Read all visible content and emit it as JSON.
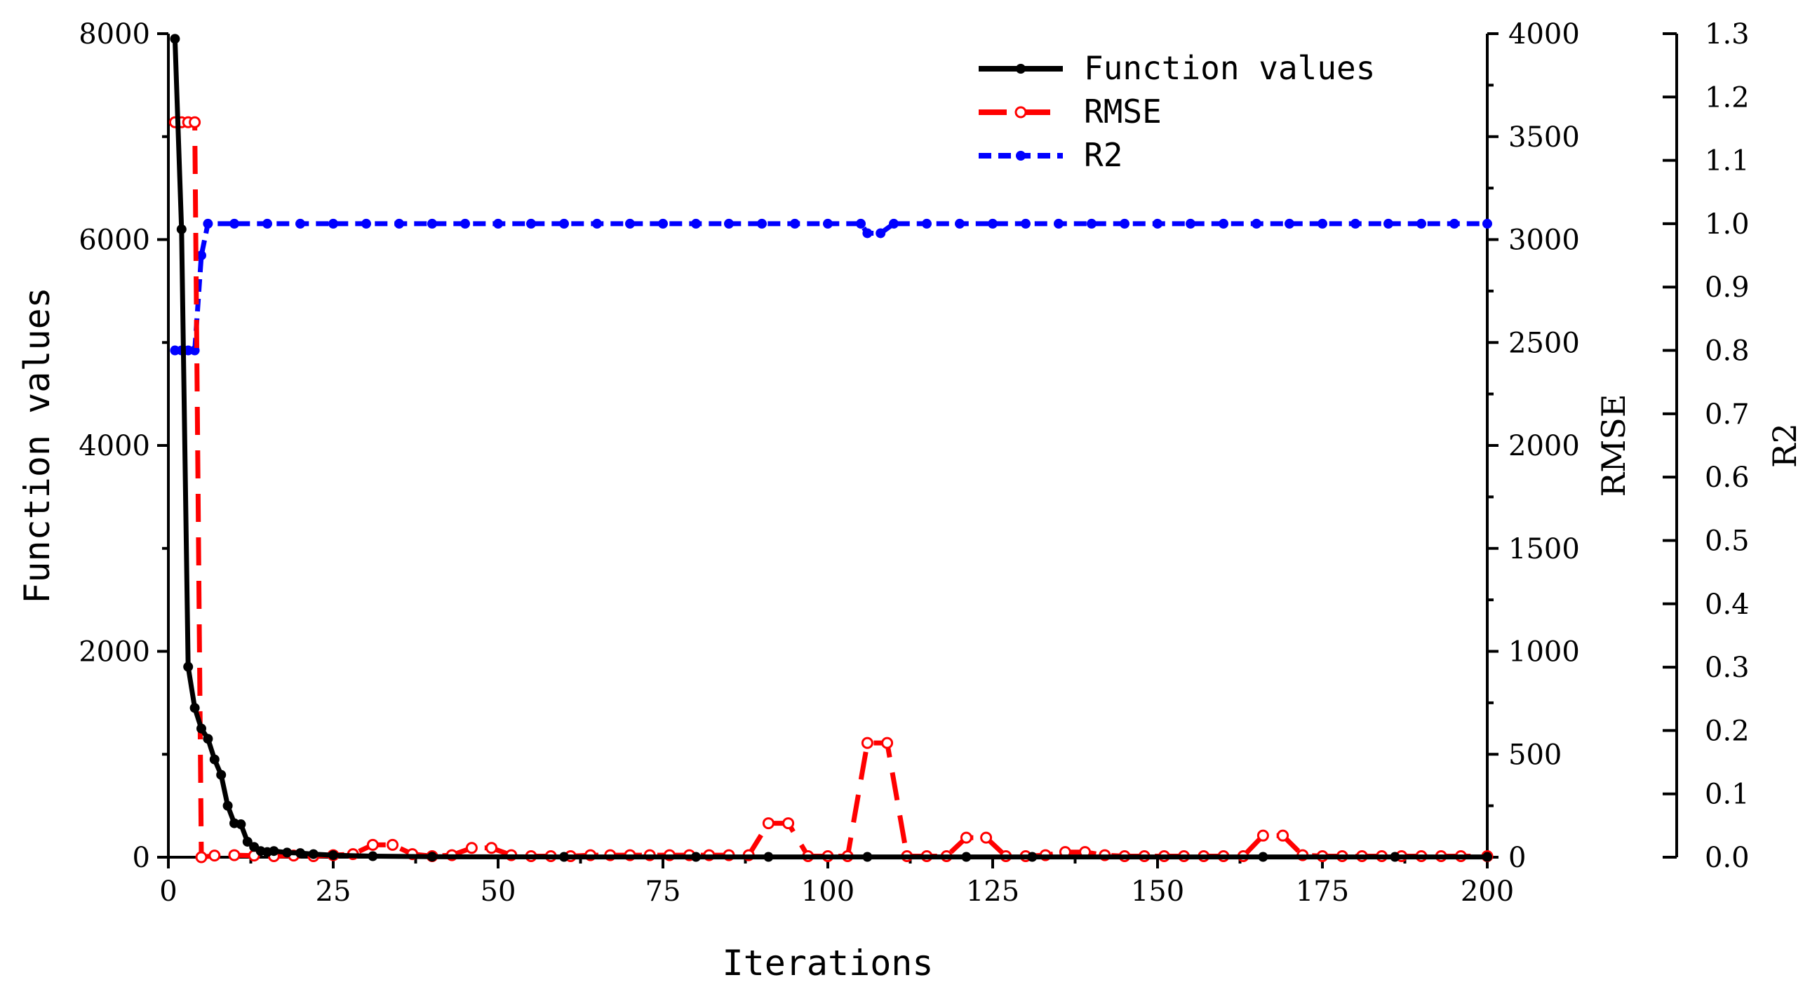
{
  "chart_data": {
    "type": "line",
    "xlabel": "Iterations",
    "x_ticks": [
      "0",
      "25",
      "50",
      "75",
      "100",
      "125",
      "150",
      "175",
      "200"
    ],
    "x_range": [
      0,
      200
    ],
    "axes": [
      {
        "id": "left",
        "label": "Function values",
        "ylim": [
          0,
          8000
        ],
        "ticks": [
          "0",
          "2000",
          "4000",
          "6000",
          "8000"
        ]
      },
      {
        "id": "right1",
        "label": "RMSE",
        "ylim": [
          0,
          4000
        ],
        "ticks": [
          "0",
          "500",
          "1000",
          "1500",
          "2000",
          "2500",
          "3000",
          "3500",
          "4000"
        ]
      },
      {
        "id": "right2",
        "label": "R2",
        "ylim": [
          0,
          1.3
        ],
        "ticks": [
          "0.0",
          "0.1",
          "0.2",
          "0.3",
          "0.4",
          "0.5",
          "0.6",
          "0.7",
          "0.8",
          "0.9",
          "1.0",
          "1.1",
          "1.2",
          "1.3"
        ]
      }
    ],
    "series": [
      {
        "name": "Function values",
        "axis": "left",
        "color": "#000000",
        "style": "solid",
        "marker": "filled-circle",
        "x": [
          1,
          2,
          3,
          4,
          5,
          6,
          7,
          8,
          9,
          10,
          11,
          12,
          13,
          14,
          15,
          16,
          18,
          20,
          22,
          25,
          31,
          40,
          60,
          80,
          91,
          106,
          121,
          131,
          166,
          186,
          200
        ],
        "y": [
          7950,
          6100,
          1850,
          1450,
          1250,
          1150,
          950,
          800,
          500,
          330,
          320,
          150,
          100,
          60,
          50,
          60,
          45,
          40,
          30,
          20,
          10,
          5,
          3,
          3,
          3,
          3,
          3,
          3,
          3,
          3,
          3
        ]
      },
      {
        "name": "RMSE",
        "axis": "right1",
        "color": "#ff0000",
        "style": "dashed",
        "marker": "open-circle",
        "x": [
          1,
          2,
          3,
          4,
          5,
          7,
          10,
          13,
          16,
          19,
          22,
          25,
          28,
          31,
          34,
          37,
          40,
          43,
          46,
          49,
          52,
          55,
          58,
          61,
          64,
          67,
          70,
          73,
          76,
          79,
          82,
          85,
          88,
          91,
          94,
          97,
          100,
          103,
          106,
          109,
          112,
          115,
          118,
          121,
          124,
          127,
          130,
          133,
          136,
          139,
          142,
          145,
          148,
          151,
          154,
          157,
          160,
          163,
          166,
          169,
          172,
          175,
          178,
          181,
          184,
          187,
          190,
          193,
          196,
          200
        ],
        "y": [
          3570,
          3570,
          3570,
          3570,
          0,
          8,
          10,
          8,
          5,
          8,
          5,
          10,
          15,
          60,
          60,
          15,
          5,
          10,
          45,
          45,
          10,
          5,
          5,
          5,
          10,
          10,
          10,
          10,
          10,
          10,
          10,
          10,
          10,
          165,
          165,
          5,
          5,
          5,
          555,
          555,
          5,
          5,
          5,
          95,
          95,
          5,
          5,
          10,
          25,
          25,
          10,
          5,
          5,
          5,
          5,
          5,
          5,
          5,
          105,
          105,
          10,
          5,
          5,
          5,
          5,
          5,
          5,
          5,
          5,
          5
        ]
      },
      {
        "name": "R2",
        "axis": "right2",
        "color": "#0000ff",
        "style": "dashed",
        "marker": "filled-circle",
        "x": [
          1,
          2,
          3,
          4,
          5,
          6,
          10,
          15,
          20,
          25,
          30,
          35,
          40,
          45,
          50,
          55,
          60,
          65,
          70,
          75,
          80,
          85,
          90,
          95,
          100,
          105,
          106,
          108,
          110,
          115,
          120,
          125,
          130,
          135,
          140,
          145,
          150,
          155,
          160,
          165,
          170,
          175,
          180,
          185,
          190,
          195,
          200
        ],
        "y": [
          0.8,
          0.8,
          0.8,
          0.8,
          0.95,
          1.0,
          1.0,
          1.0,
          1.0,
          1.0,
          1.0,
          1.0,
          1.0,
          1.0,
          1.0,
          1.0,
          1.0,
          1.0,
          1.0,
          1.0,
          1.0,
          1.0,
          1.0,
          1.0,
          1.0,
          1.0,
          0.985,
          0.985,
          1.0,
          1.0,
          1.0,
          1.0,
          1.0,
          1.0,
          1.0,
          1.0,
          1.0,
          1.0,
          1.0,
          1.0,
          1.0,
          1.0,
          1.0,
          1.0,
          1.0,
          1.0,
          1.0
        ]
      }
    ],
    "legend": {
      "placement": "top-center",
      "entries": [
        "Function values",
        "RMSE",
        "R2"
      ]
    },
    "grid": false
  }
}
